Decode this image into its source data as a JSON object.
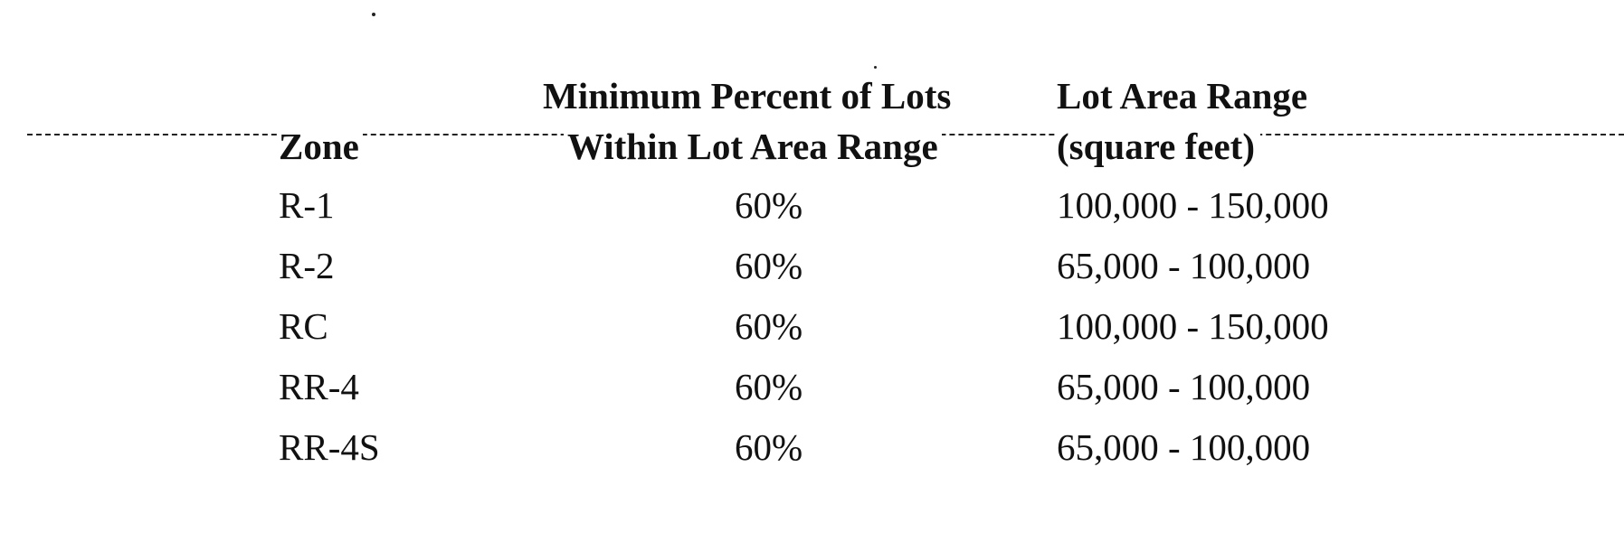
{
  "table": {
    "headers": {
      "zone": "Zone",
      "min_percent_line1": "Minimum Percent of Lots",
      "min_percent_line2": "Within Lot Area Range",
      "lot_area_line1": "Lot Area Range",
      "lot_area_line2": "(square feet)"
    },
    "rows": [
      {
        "zone": "R-1",
        "percent": "60%",
        "range": "100,000 - 150,000"
      },
      {
        "zone": "R-2",
        "percent": "60%",
        "range": "65,000 - 100,000"
      },
      {
        "zone": "RC",
        "percent": "60%",
        "range": "100,000 - 150,000"
      },
      {
        "zone": "RR-4",
        "percent": "60%",
        "range": "65,000 - 100,000"
      },
      {
        "zone": "RR-4S",
        "percent": "60%",
        "range": "65,000 - 100,000"
      }
    ]
  }
}
